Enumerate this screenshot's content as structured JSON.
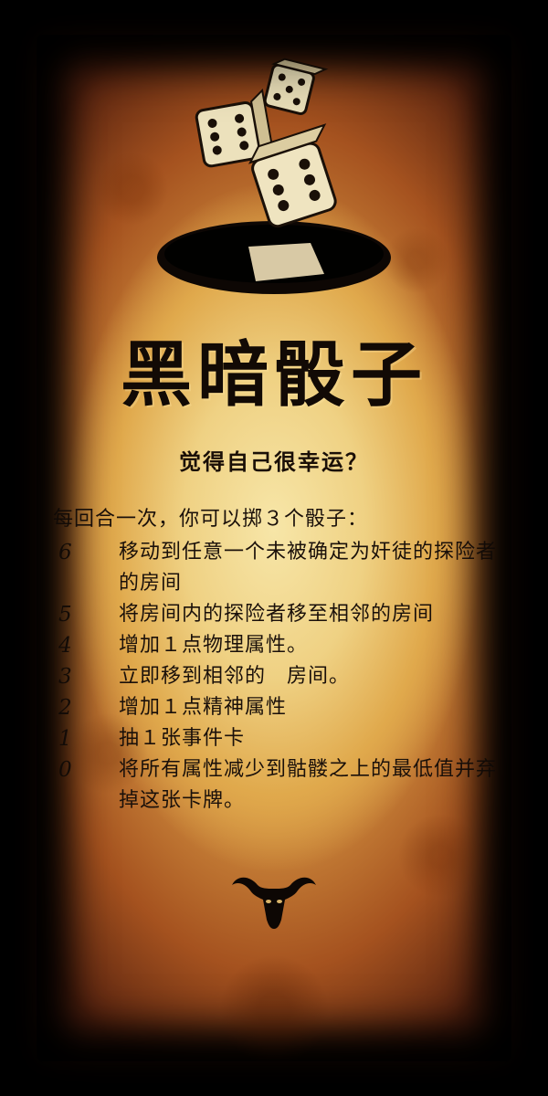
{
  "card": {
    "title": "黑暗骰子",
    "subtitle": "觉得自己很幸运？",
    "intro": "每回合一次，你可以掷３个骰子：",
    "rules": [
      {
        "roll": "6",
        "effect": "移动到任意一个未被确定为奸徒的探险者的房间"
      },
      {
        "roll": "5",
        "effect": "将房间内的探险者移至相邻的房间"
      },
      {
        "roll": "4",
        "effect": "增加１点物理属性。"
      },
      {
        "roll": "3",
        "effect": "立即移到相邻的　房间。"
      },
      {
        "roll": "2",
        "effect": "增加１点精神属性"
      },
      {
        "roll": "1",
        "effect": "抽１张事件卡"
      },
      {
        "roll": "0",
        "effect": "将所有属性减少到骷髅之上的最低值并弃掉这张卡牌。"
      }
    ],
    "icons": {
      "illustration": "dice-over-hole-icon",
      "emblem": "bull-skull-icon"
    },
    "colors": {
      "ink": "#120a05",
      "parchment_light": "#f7e6a8",
      "parchment_dark": "#a5521f",
      "border": "#050302"
    }
  }
}
